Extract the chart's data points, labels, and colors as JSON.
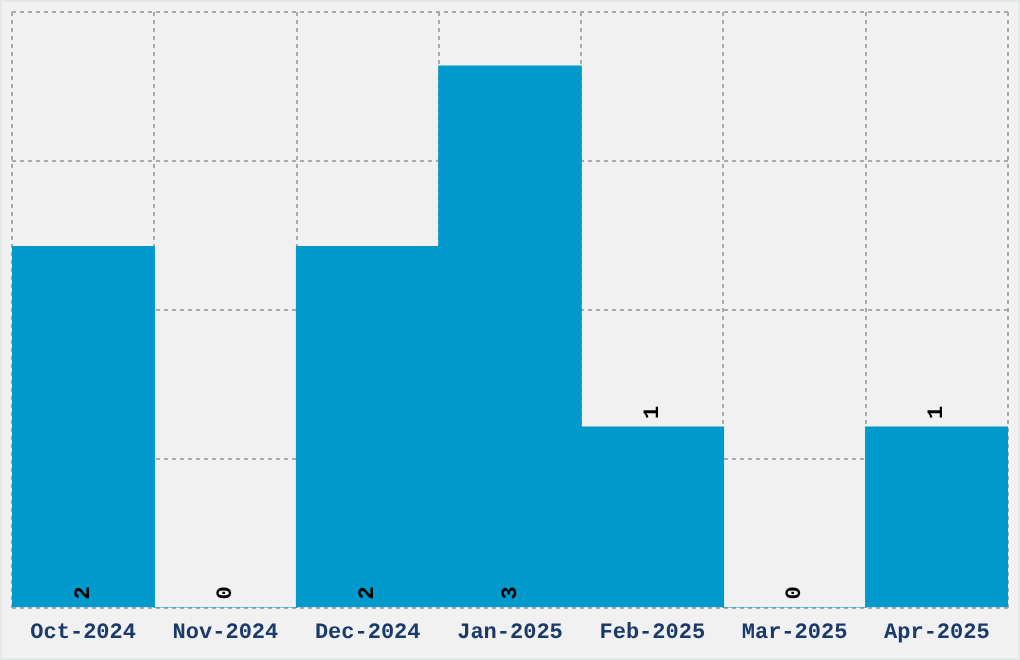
{
  "chart_data": {
    "type": "bar",
    "categories": [
      "Oct-2024",
      "Nov-2024",
      "Dec-2024",
      "Jan-2025",
      "Feb-2025",
      "Mar-2025",
      "Apr-2025"
    ],
    "values": [
      2,
      0,
      2,
      3,
      1,
      0,
      1
    ],
    "color": "#0099cc",
    "ylim": [
      0,
      3.3
    ],
    "yticks": [
      {
        "value": 0,
        "label": null
      },
      {
        "value": 0.825,
        "label": null
      },
      {
        "value": 1.65,
        "label": null
      },
      {
        "value": 2.475,
        "label": null
      },
      {
        "value": 3.3,
        "label": null
      }
    ],
    "grid": true,
    "tick_labels": "x",
    "data_labels": true
  }
}
